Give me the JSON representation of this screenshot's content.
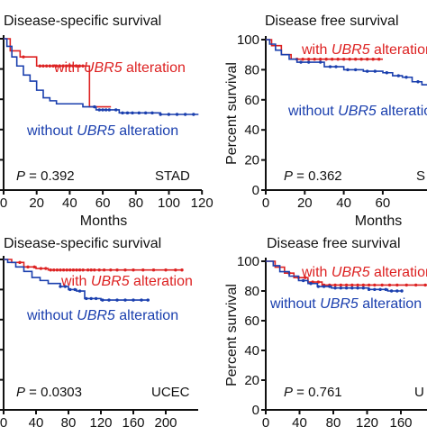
{
  "colors": {
    "with": "#dd2222",
    "without": "#1a3fae",
    "without_tail": "#4a90e2",
    "axis": "#111111"
  },
  "legend": {
    "with_prefix": "with ",
    "gene": "UBR5",
    "with_suffix": " alteration",
    "without_prefix": "without "
  },
  "chart_data": [
    {
      "type": "line",
      "id": "tl",
      "title": "Disease-specific survival",
      "xlabel": "Months",
      "ylabel": "",
      "xticks": [
        "0",
        "20",
        "40",
        "60",
        "80",
        "100",
        "120"
      ],
      "xlim": [
        0,
        120
      ],
      "yticks": [],
      "ylim": [
        0,
        100
      ],
      "p_label": "P",
      "p_value": " = 0.392",
      "cohort": "STAD",
      "series": [
        {
          "group": "with",
          "steps": [
            [
              0,
              100
            ],
            [
              4,
              92
            ],
            [
              10,
              88
            ],
            [
              20,
              82
            ],
            [
              52,
              82
            ],
            [
              52,
              55
            ],
            [
              65,
              55
            ]
          ],
          "censors": [
            12,
            22,
            24,
            26,
            28,
            30,
            32,
            34,
            36,
            38,
            40,
            42,
            44,
            46,
            48
          ]
        },
        {
          "group": "without",
          "steps": [
            [
              0,
              100
            ],
            [
              2,
              95
            ],
            [
              5,
              88
            ],
            [
              8,
              82
            ],
            [
              12,
              76
            ],
            [
              16,
              72
            ],
            [
              20,
              66
            ],
            [
              24,
              61
            ],
            [
              28,
              59
            ],
            [
              32,
              57
            ],
            [
              40,
              57
            ],
            [
              48,
              55
            ],
            [
              52,
              55
            ],
            [
              56,
              53
            ],
            [
              65,
              53
            ],
            [
              70,
              51
            ],
            [
              80,
              51
            ],
            [
              90,
              51
            ],
            [
              95,
              50
            ],
            [
              118,
              50
            ]
          ],
          "censors": [
            55,
            58,
            60,
            62,
            64,
            68,
            72,
            75,
            78,
            82,
            86,
            90,
            95,
            100,
            105,
            110,
            115
          ]
        }
      ]
    },
    {
      "type": "line",
      "id": "tr",
      "title": "Disease free survival",
      "xlabel": "Months",
      "ylabel": "Percent survival",
      "xticks": [
        "0",
        "20",
        "40",
        "60"
      ],
      "xlim": [
        0,
        120
      ],
      "yticks": [
        "0",
        "20",
        "40",
        "60",
        "80",
        "100"
      ],
      "ylim": [
        0,
        100
      ],
      "p_label": "P",
      "p_value": " = 0.362",
      "cohort": "S",
      "series": [
        {
          "group": "with",
          "steps": [
            [
              0,
              100
            ],
            [
              3,
              96
            ],
            [
              8,
              90
            ],
            [
              13,
              87
            ],
            [
              60,
              87
            ]
          ],
          "censors": [
            16,
            19,
            22,
            25,
            28,
            31,
            34,
            37,
            40,
            43,
            46,
            49,
            52,
            55,
            58
          ]
        },
        {
          "group": "without",
          "steps": [
            [
              0,
              100
            ],
            [
              2,
              97
            ],
            [
              5,
              93
            ],
            [
              8,
              90
            ],
            [
              12,
              87
            ],
            [
              16,
              85
            ],
            [
              25,
              85
            ],
            [
              30,
              82
            ],
            [
              40,
              80
            ],
            [
              50,
              79
            ],
            [
              60,
              78
            ],
            [
              65,
              76
            ],
            [
              70,
              75
            ],
            [
              75,
              72
            ],
            [
              80,
              70
            ],
            [
              90,
              68
            ],
            [
              95,
              66
            ],
            [
              105,
              62
            ],
            [
              120,
              62
            ]
          ],
          "censors": [
            18,
            22,
            28,
            33,
            36,
            42,
            46,
            52,
            56,
            62,
            68,
            72,
            78,
            84,
            88,
            94,
            100,
            108,
            112,
            116
          ]
        }
      ]
    },
    {
      "type": "line",
      "id": "bl",
      "title": "Disease-specific survival",
      "xlabel": "",
      "ylabel": "",
      "xticks": [
        "0",
        "40",
        "80",
        "120",
        "160",
        "200"
      ],
      "xlim": [
        0,
        240
      ],
      "yticks": [],
      "ylim": [
        0,
        100
      ],
      "p_label": "P",
      "p_value": " = 0.0303",
      "cohort": "UCEC",
      "series": [
        {
          "group": "with",
          "steps": [
            [
              0,
              100
            ],
            [
              10,
              98
            ],
            [
              25,
              95
            ],
            [
              40,
              94
            ],
            [
              55,
              93
            ],
            [
              220,
              93
            ]
          ],
          "censors": [
            20,
            30,
            38,
            46,
            52,
            58,
            62,
            66,
            70,
            74,
            78,
            82,
            86,
            90,
            94,
            98,
            104,
            108,
            112,
            118,
            124,
            132,
            140,
            150,
            160,
            172,
            185,
            200,
            212,
            220
          ]
        },
        {
          "group": "without",
          "steps": [
            [
              0,
              100
            ],
            [
              5,
              98
            ],
            [
              15,
              95
            ],
            [
              25,
              92
            ],
            [
              35,
              88
            ],
            [
              45,
              86
            ],
            [
              55,
              84
            ],
            [
              70,
              82
            ],
            [
              80,
              80
            ],
            [
              90,
              79
            ],
            [
              100,
              79
            ],
            [
              100,
              74
            ],
            [
              120,
              73
            ],
            [
              150,
              73
            ],
            [
              180,
              73
            ]
          ],
          "censors": [
            70,
            76,
            82,
            88,
            94,
            102,
            108,
            114,
            122,
            130,
            140,
            150,
            160,
            170,
            178
          ]
        }
      ]
    },
    {
      "type": "line",
      "id": "br",
      "title": "Disease free survival",
      "xlabel": "",
      "ylabel": "Percent survival",
      "xticks": [
        "0",
        "40",
        "80",
        "120",
        "160",
        "200"
      ],
      "xlim": [
        0,
        240
      ],
      "yticks": [
        "0",
        "20",
        "40",
        "60",
        "80",
        "100"
      ],
      "ylim": [
        0,
        100
      ],
      "p_label": "P",
      "p_value": " = 0.761",
      "cohort": "U",
      "series": [
        {
          "group": "with",
          "steps": [
            [
              0,
              100
            ],
            [
              10,
              96
            ],
            [
              20,
              92
            ],
            [
              30,
              89
            ],
            [
              45,
              86
            ],
            [
              60,
              84
            ],
            [
              200,
              84
            ]
          ],
          "censors": [
            25,
            35,
            42,
            50,
            56,
            62,
            68,
            74,
            80,
            86,
            92,
            98,
            104,
            110,
            116,
            124,
            132,
            140,
            150,
            160,
            170,
            180,
            190,
            200
          ]
        },
        {
          "group": "without",
          "steps": [
            [
              0,
              100
            ],
            [
              8,
              97
            ],
            [
              15,
              93
            ],
            [
              25,
              90
            ],
            [
              35,
              87
            ],
            [
              45,
              85
            ],
            [
              55,
              83
            ],
            [
              70,
              82
            ],
            [
              90,
              82
            ],
            [
              110,
              81
            ],
            [
              130,
              80
            ],
            [
              145,
              80
            ]
          ],
          "censors": [
            40,
            48,
            56,
            62,
            68,
            74,
            80,
            86,
            92,
            98,
            104,
            110,
            116,
            122,
            128,
            134,
            140,
            145
          ]
        }
      ]
    }
  ]
}
